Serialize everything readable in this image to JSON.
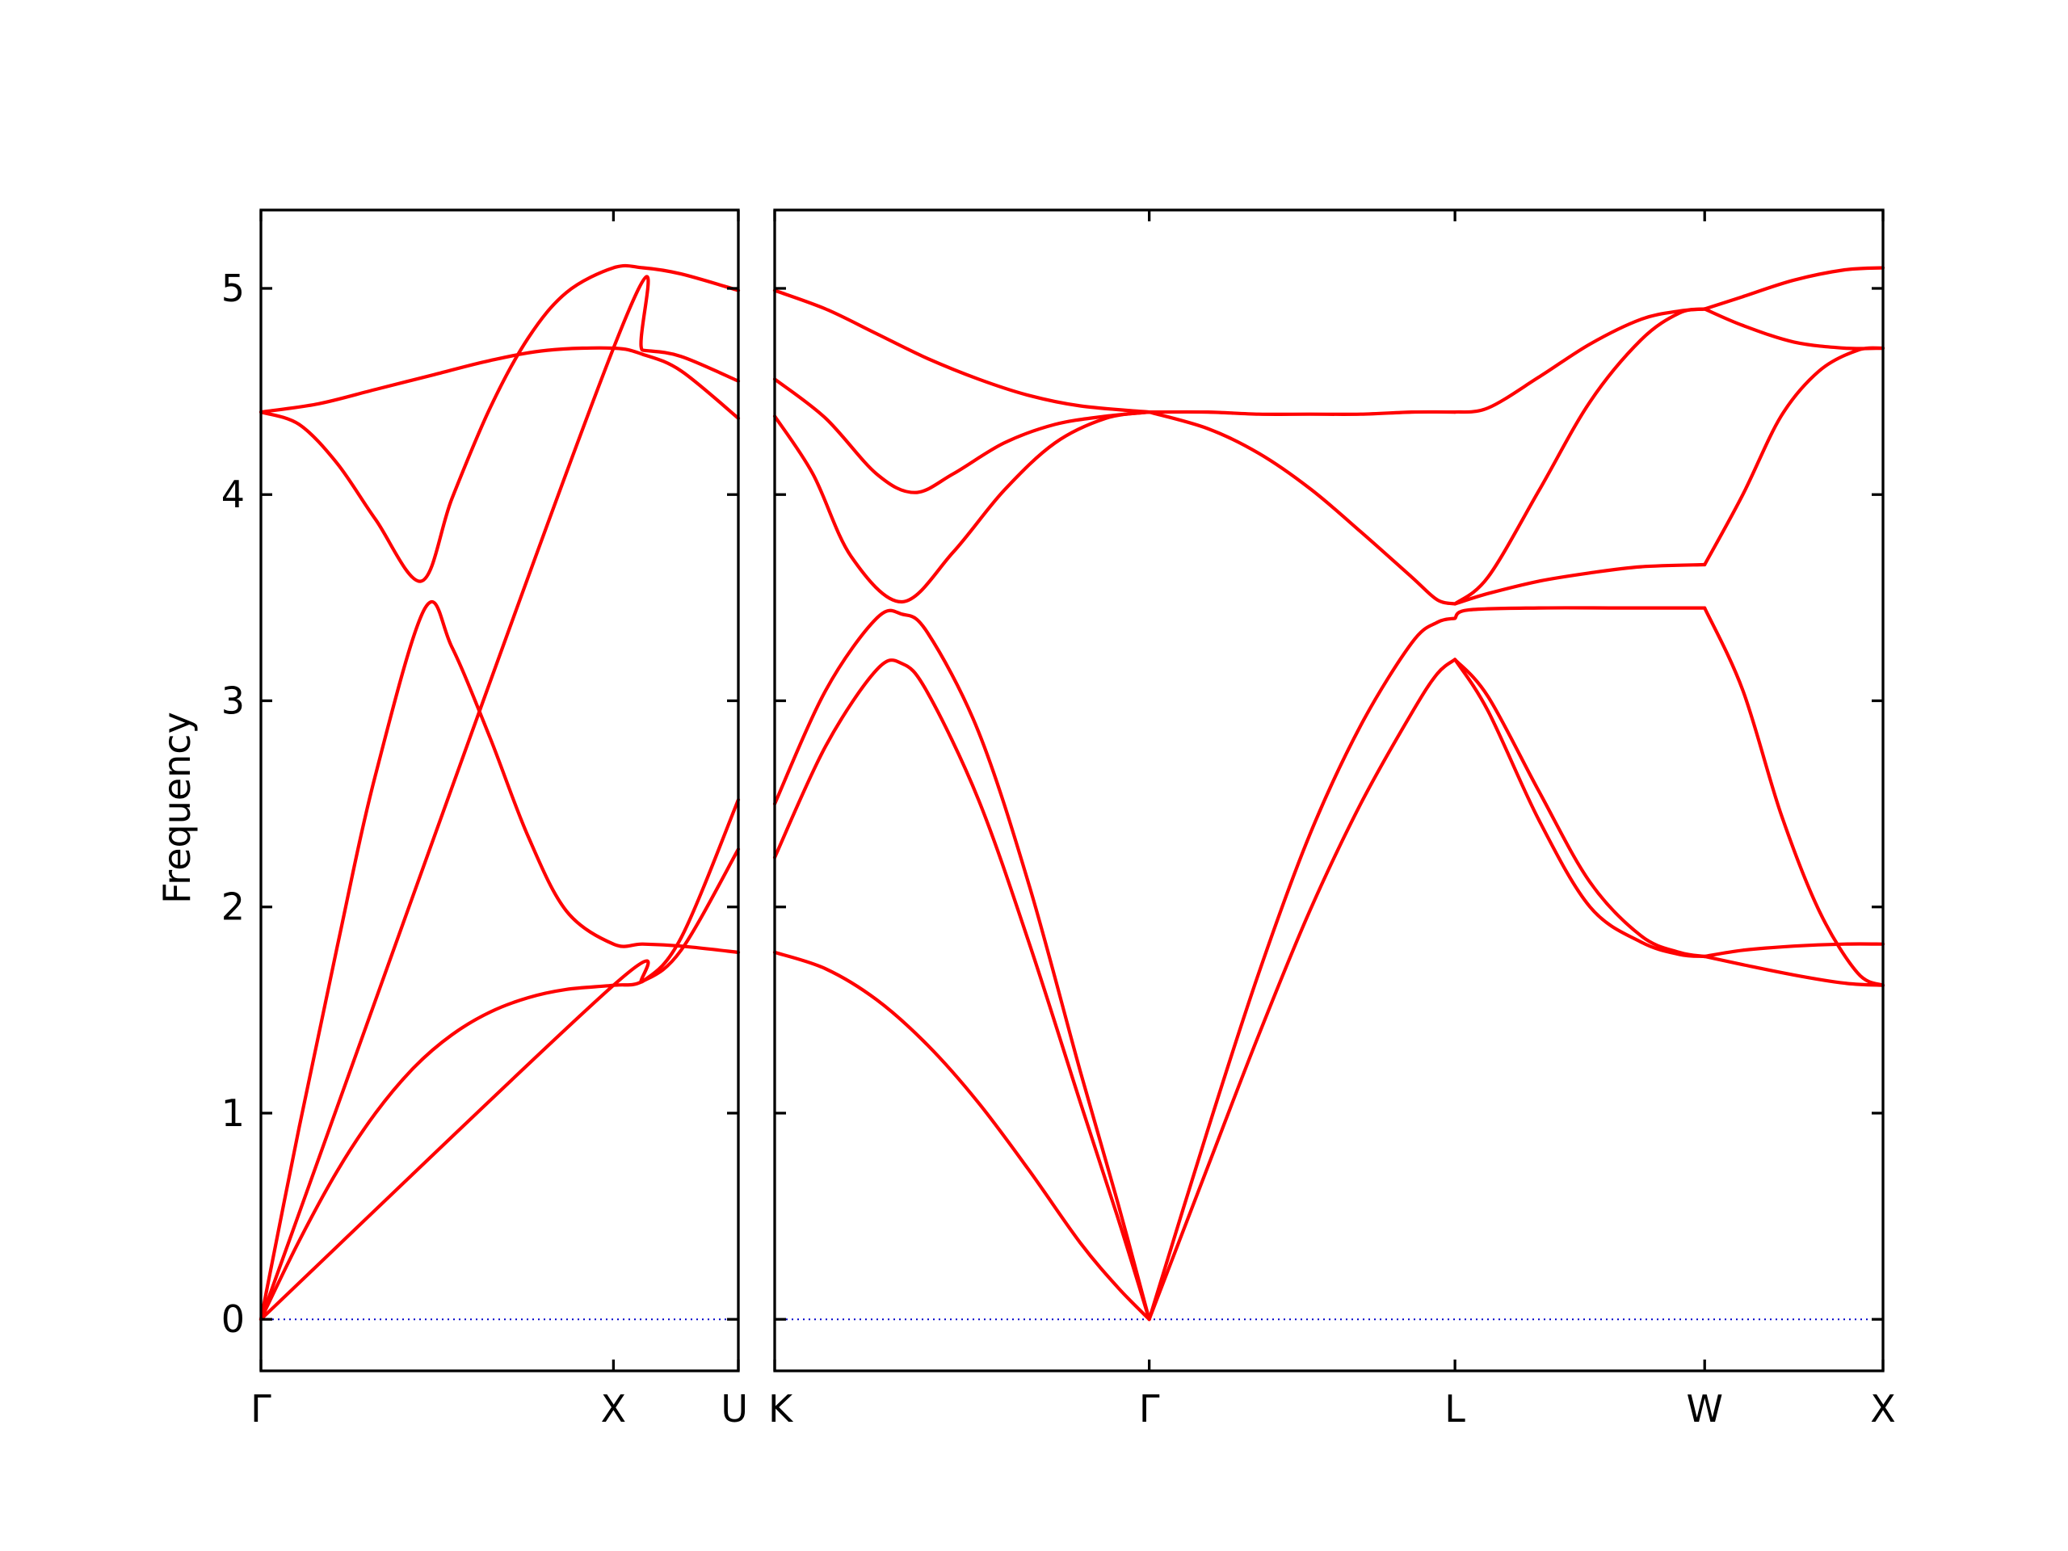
{
  "chart_data": {
    "type": "line",
    "title": "",
    "ylabel": "Frequency",
    "ylim": [
      -0.25,
      5.38
    ],
    "yticks": [
      0,
      1,
      2,
      3,
      4,
      5
    ],
    "grid": false,
    "colors": {
      "bands": "#ff0000",
      "zero_line": "#0000cc"
    },
    "zero_line": {
      "y": 0,
      "style": "dotted"
    },
    "panels": [
      {
        "id": "left",
        "path": "Γ-X-U",
        "xlim": [
          0,
          1.25
        ],
        "ticks": [
          {
            "x": 0,
            "label": "Γ"
          },
          {
            "x": 0.923,
            "label": "X"
          },
          {
            "x": 1.25,
            "label": "U"
          }
        ],
        "bands": [
          {
            "x": [
              0,
              0.1,
              0.2,
              0.3,
              0.4,
              0.5,
              0.6,
              0.7,
              0.8,
              0.923,
              1.0,
              1.1,
              1.25
            ],
            "y": [
              0,
              0.38,
              0.72,
              1.0,
              1.22,
              1.38,
              1.49,
              1.56,
              1.6,
              1.62,
              1.64,
              1.79,
              2.28
            ]
          },
          {
            "x": [
              0,
              0.1,
              0.2,
              0.3,
              0.43,
              0.5,
              0.6,
              0.7,
              0.8,
              0.923,
              1.0,
              1.1,
              1.25
            ],
            "y": [
              0,
              0.93,
              1.81,
              2.64,
              3.45,
              3.26,
              2.82,
              2.34,
              1.98,
              1.82,
              1.82,
              1.81,
              1.78
            ]
          },
          {
            "x": [
              0,
              0.1,
              0.2,
              0.3,
              0.42,
              0.5,
              0.6,
              0.7,
              0.8,
              0.923,
              1.0,
              1.1,
              1.25
            ],
            "y": [
              4.4,
              4.34,
              4.15,
              3.88,
              3.58,
              3.98,
              4.42,
              4.76,
              4.98,
              5.1,
              5.1,
              5.07,
              4.99
            ]
          },
          {
            "x": [
              0,
              0.15,
              0.3,
              0.45,
              0.6,
              0.75,
              0.923,
              1.0,
              1.1,
              1.25
            ],
            "y": [
              4.4,
              4.44,
              4.51,
              4.58,
              4.65,
              4.7,
              4.71,
              4.68,
              4.6,
              4.37
            ]
          },
          {
            "x": [
              0,
              0.923,
              1.0,
              1.1,
              1.25
            ],
            "y": [
              0,
              1.62,
              1.64,
              1.85,
              2.52
            ]
          },
          {
            "x": [
              0,
              0.923,
              1.0,
              1.1,
              1.25
            ],
            "y": [
              0,
              4.71,
              4.7,
              4.67,
              4.55
            ]
          }
        ]
      },
      {
        "id": "right",
        "path": "K-Γ-L-W-X",
        "xlim": [
          0,
          4.35
        ],
        "ticks": [
          {
            "x": 0,
            "label": "K"
          },
          {
            "x": 1.47,
            "label": "Γ"
          },
          {
            "x": 2.67,
            "label": "L"
          },
          {
            "x": 3.65,
            "label": "W"
          },
          {
            "x": 4.35,
            "label": "X"
          }
        ],
        "bands": [
          {
            "x": [
              0,
              0.2,
              0.4,
              0.6,
              0.8,
              1.0,
              1.2,
              1.35,
              1.47
            ],
            "y": [
              1.78,
              1.7,
              1.55,
              1.33,
              1.05,
              0.72,
              0.37,
              0.15,
              0
            ],
            "x2": [
              1.47,
              1.7,
              1.9,
              2.1,
              2.3,
              2.5,
              2.6,
              2.67
            ],
            "y2": [
              0,
              0.74,
              1.38,
              1.98,
              2.5,
              2.94,
              3.13,
              3.2
            ]
          },
          {
            "x": [
              0,
              0.2,
              0.4,
              0.5,
              0.6,
              0.8,
              1.0,
              1.2,
              1.35,
              1.47
            ],
            "y": [
              2.24,
              2.78,
              3.15,
              3.18,
              3.04,
              2.52,
              1.82,
              1.05,
              0.48,
              0
            ]
          },
          {
            "x": [
              0,
              0.2,
              0.4,
              0.5,
              0.6,
              0.8,
              1.0,
              1.2,
              1.35,
              1.47
            ],
            "y": [
              2.5,
              3.05,
              3.4,
              3.42,
              3.33,
              2.85,
              2.1,
              1.2,
              0.55,
              0
            ]
          },
          {
            "x": [
              0,
              0.15,
              0.3,
              0.5,
              0.7,
              0.9,
              1.1,
              1.3,
              1.47
            ],
            "y": [
              4.38,
              4.1,
              3.7,
              3.48,
              3.72,
              4.02,
              4.25,
              4.37,
              4.4
            ]
          },
          {
            "x": [
              0,
              0.2,
              0.4,
              0.55,
              0.7,
              0.9,
              1.1,
              1.3,
              1.47
            ],
            "y": [
              4.56,
              4.37,
              4.1,
              4.01,
              4.1,
              4.25,
              4.34,
              4.38,
              4.4
            ]
          },
          {
            "x": [
              0,
              0.2,
              0.4,
              0.6,
              0.8,
              1.0,
              1.2,
              1.47
            ],
            "y": [
              4.99,
              4.9,
              4.78,
              4.66,
              4.56,
              4.48,
              4.43,
              4.4
            ]
          },
          {
            "x": [
              1.47,
              1.7,
              1.9,
              2.1,
              2.3,
              2.5,
              2.67
            ],
            "y": [
              4.4,
              4.4,
              4.39,
              4.39,
              4.39,
              4.4,
              4.4
            ]
          },
          {
            "x": [
              1.47,
              1.7,
              1.9,
              2.1,
              2.3,
              2.5,
              2.6,
              2.67
            ],
            "y": [
              4.4,
              4.32,
              4.2,
              4.03,
              3.82,
              3.6,
              3.49,
              3.47
            ]
          },
          {
            "x": [
              1.47,
              1.7,
              1.9,
              2.1,
              2.3,
              2.5,
              2.6,
              2.67
            ],
            "y": [
              0,
              0.92,
              1.68,
              2.35,
              2.88,
              3.28,
              3.38,
              3.4
            ]
          },
          {
            "x": [
              2.67,
              2.8,
              3.0,
              3.2,
              3.4,
              3.55,
              3.65
            ],
            "y": [
              3.2,
              2.95,
              2.42,
              2.0,
              1.83,
              1.77,
              1.76
            ]
          },
          {
            "x": [
              2.67,
              2.8,
              3.0,
              3.2,
              3.4,
              3.55,
              3.65
            ],
            "y": [
              3.2,
              3.02,
              2.56,
              2.12,
              1.86,
              1.78,
              1.76
            ]
          },
          {
            "x": [
              2.67,
              2.72,
              3.0,
              3.3,
              3.5,
              3.65
            ],
            "y": [
              3.4,
              3.44,
              3.45,
              3.45,
              3.45,
              3.45
            ],
            "x2": [
              3.65,
              3.8,
              3.95,
              4.1,
              4.25,
              4.35
            ],
            "y2": [
              3.45,
              3.05,
              2.45,
              1.98,
              1.68,
              1.62
            ]
          },
          {
            "x": [
              2.67,
              2.8,
              3.0,
              3.2,
              3.4,
              3.65
            ],
            "y": [
              3.47,
              3.52,
              3.58,
              3.62,
              3.65,
              3.66
            ],
            "x2": [
              3.65,
              3.8,
              3.95,
              4.1,
              4.25,
              4.35
            ],
            "y2": [
              3.66,
              4.0,
              4.38,
              4.6,
              4.7,
              4.71
            ]
          },
          {
            "x": [
              2.67,
              2.8,
              3.0,
              3.2,
              3.4,
              3.55,
              3.65
            ],
            "y": [
              4.4,
              4.42,
              4.57,
              4.73,
              4.85,
              4.89,
              4.9
            ]
          },
          {
            "x": [
              2.67,
              2.8,
              3.0,
              3.2,
              3.4,
              3.55,
              3.65
            ],
            "y": [
              3.47,
              3.6,
              4.02,
              4.45,
              4.75,
              4.88,
              4.9
            ]
          },
          {
            "x": [
              3.65,
              3.8,
              4.0,
              4.2,
              4.35
            ],
            "y": [
              4.9,
              4.96,
              5.04,
              5.09,
              5.1
            ]
          },
          {
            "x": [
              3.65,
              3.8,
              4.0,
              4.2,
              4.35
            ],
            "y": [
              4.9,
              4.82,
              4.74,
              4.71,
              4.71
            ]
          },
          {
            "x": [
              3.65,
              3.8,
              4.0,
              4.2,
              4.35
            ],
            "y": [
              1.76,
              1.79,
              1.81,
              1.82,
              1.82
            ]
          },
          {
            "x": [
              3.65,
              3.8,
              4.0,
              4.2,
              4.35
            ],
            "y": [
              1.76,
              1.72,
              1.67,
              1.63,
              1.62
            ]
          }
        ]
      }
    ]
  }
}
